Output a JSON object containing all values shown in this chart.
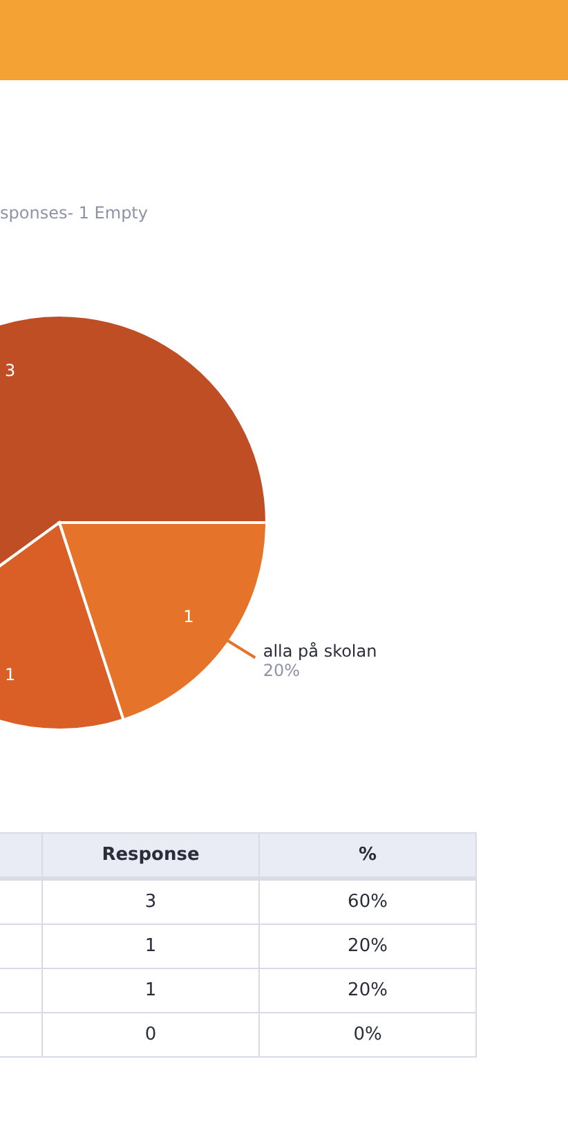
{
  "chart_data": {
    "type": "pie",
    "subtitle": "sponses- 1 Empty",
    "categories": [
      null,
      null,
      "alla på skolan",
      null
    ],
    "values": [
      3,
      1,
      1,
      0
    ],
    "colors": [
      "#bf4e24",
      "#d95f26",
      "#e5732a",
      "#f08c3a"
    ],
    "value_labels": [
      "3",
      "1",
      "1",
      "0"
    ],
    "annotations": [
      "Response",
      "%",
      "60%",
      "20%",
      "20%",
      "0%"
    ]
  }
}
